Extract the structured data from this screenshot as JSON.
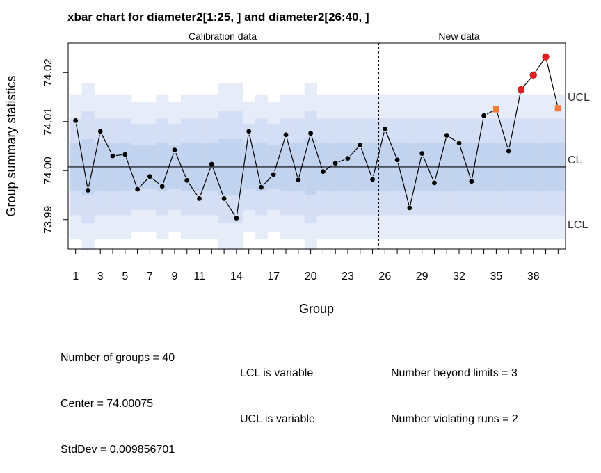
{
  "chart_data": {
    "type": "line",
    "title": "xbar chart for diameter2[1:25, ] and diameter2[26:40, ]",
    "xlabel": "Group",
    "ylabel": "Group summary statistics",
    "section_labels": [
      "Calibration data",
      "New data"
    ],
    "calibration_groups": 25,
    "x_ticks": [
      1,
      3,
      5,
      7,
      9,
      11,
      14,
      17,
      20,
      23,
      26,
      29,
      32,
      35,
      38
    ],
    "y_ticks": [
      73.99,
      74.0,
      74.01,
      74.02
    ],
    "y_tick_labels": [
      "73.99",
      "74.00",
      "74.01",
      "74.02"
    ],
    "xlim": [
      0.4,
      40.6
    ],
    "ylim": [
      73.984,
      74.026
    ],
    "center": 74.00075,
    "limit_labels": [
      "UCL",
      "CL",
      "LCL"
    ],
    "values": [
      74.0102,
      73.996,
      74.008,
      74.003,
      74.0033,
      73.9962,
      73.9988,
      73.9968,
      74.0042,
      73.998,
      73.9943,
      74.0013,
      73.9943,
      73.9903,
      74.008,
      73.9966,
      73.9992,
      74.0073,
      73.9981,
      74.0076,
      73.9998,
      74.0015,
      74.0025,
      74.0052,
      73.9982,
      74.0085,
      74.0022,
      73.9924,
      74.0035,
      73.9975,
      74.0072,
      74.0056,
      73.9978,
      74.0112,
      74.0125,
      74.004,
      74.0165,
      74.0195,
      74.0232,
      74.0127
    ],
    "point_status": [
      "normal",
      "normal",
      "normal",
      "normal",
      "normal",
      "normal",
      "normal",
      "normal",
      "normal",
      "normal",
      "normal",
      "normal",
      "normal",
      "normal",
      "normal",
      "normal",
      "normal",
      "normal",
      "normal",
      "normal",
      "normal",
      "normal",
      "normal",
      "normal",
      "normal",
      "normal",
      "normal",
      "normal",
      "normal",
      "normal",
      "normal",
      "normal",
      "normal",
      "normal",
      "violating",
      "normal",
      "beyond",
      "beyond",
      "beyond",
      "violating"
    ],
    "colors": {
      "normal": "#000000",
      "beyond": "#e02020",
      "violating": "#f5793a",
      "band_outer": "#e6ecf8",
      "band_mid": "#d4def4",
      "band_inner": "#c2d3ef"
    }
  },
  "stats": {
    "groups": "Number of groups = 40",
    "center": "Center = 74.00075",
    "stddev": "StdDev = 0.009856701",
    "lcl": "LCL is variable",
    "ucl": "UCL is variable",
    "beyond": "Number beyond limits = 3",
    "violating": "Number violating runs = 2"
  }
}
